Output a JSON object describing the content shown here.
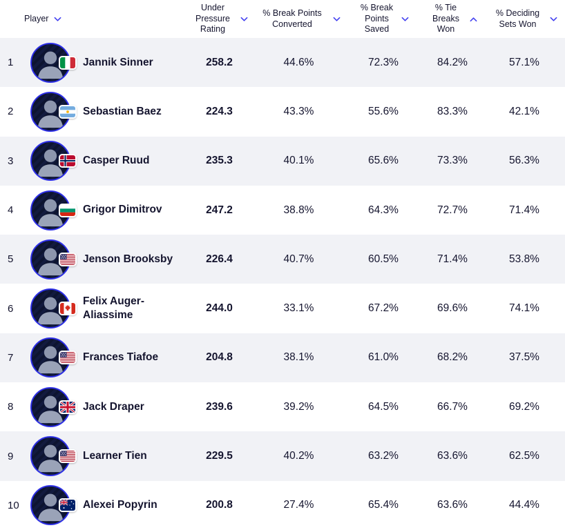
{
  "colors": {
    "accent_chevron": "#4442f0",
    "avatar_ring": "#2d2fe6",
    "row_alt_bg": "#f1f2f6",
    "text": "#14142e"
  },
  "table": {
    "columns": [
      {
        "key": "player",
        "label": "Player",
        "sort": "down"
      },
      {
        "key": "rating",
        "label": "Under Pressure Rating",
        "sort": "down"
      },
      {
        "key": "bp_converted",
        "label": "% Break Points Converted",
        "sort": "down"
      },
      {
        "key": "bp_saved",
        "label": "% Break Points Saved",
        "sort": "down"
      },
      {
        "key": "tb_won",
        "label": "% Tie Breaks Won",
        "sort": "up"
      },
      {
        "key": "deciding",
        "label": "% Deciding Sets Won",
        "sort": "down"
      }
    ],
    "rows": [
      {
        "rank": "1",
        "name": "Jannik Sinner",
        "country": "ITA",
        "rating": "258.2",
        "bp_converted": "44.6%",
        "bp_saved": "72.3%",
        "tb_won": "84.2%",
        "deciding": "57.1%"
      },
      {
        "rank": "2",
        "name": "Sebastian Baez",
        "country": "ARG",
        "rating": "224.3",
        "bp_converted": "43.3%",
        "bp_saved": "55.6%",
        "tb_won": "83.3%",
        "deciding": "42.1%"
      },
      {
        "rank": "3",
        "name": "Casper Ruud",
        "country": "NOR",
        "rating": "235.3",
        "bp_converted": "40.1%",
        "bp_saved": "65.6%",
        "tb_won": "73.3%",
        "deciding": "56.3%"
      },
      {
        "rank": "4",
        "name": "Grigor Dimitrov",
        "country": "BUL",
        "rating": "247.2",
        "bp_converted": "38.8%",
        "bp_saved": "64.3%",
        "tb_won": "72.7%",
        "deciding": "71.4%"
      },
      {
        "rank": "5",
        "name": "Jenson Brooksby",
        "country": "USA",
        "rating": "226.4",
        "bp_converted": "40.7%",
        "bp_saved": "60.5%",
        "tb_won": "71.4%",
        "deciding": "53.8%"
      },
      {
        "rank": "6",
        "name": "Felix Auger-Aliassime",
        "country": "CAN",
        "rating": "244.0",
        "bp_converted": "33.1%",
        "bp_saved": "67.2%",
        "tb_won": "69.6%",
        "deciding": "74.1%"
      },
      {
        "rank": "7",
        "name": "Frances Tiafoe",
        "country": "USA",
        "rating": "204.8",
        "bp_converted": "38.1%",
        "bp_saved": "61.0%",
        "tb_won": "68.2%",
        "deciding": "37.5%"
      },
      {
        "rank": "8",
        "name": "Jack Draper",
        "country": "GBR",
        "rating": "239.6",
        "bp_converted": "39.2%",
        "bp_saved": "64.5%",
        "tb_won": "66.7%",
        "deciding": "69.2%"
      },
      {
        "rank": "9",
        "name": "Learner Tien",
        "country": "USA",
        "rating": "229.5",
        "bp_converted": "40.2%",
        "bp_saved": "63.2%",
        "tb_won": "63.6%",
        "deciding": "62.5%"
      },
      {
        "rank": "10",
        "name": "Alexei Popyrin",
        "country": "AUS",
        "rating": "200.8",
        "bp_converted": "27.4%",
        "bp_saved": "65.4%",
        "tb_won": "63.6%",
        "deciding": "44.4%"
      }
    ]
  }
}
